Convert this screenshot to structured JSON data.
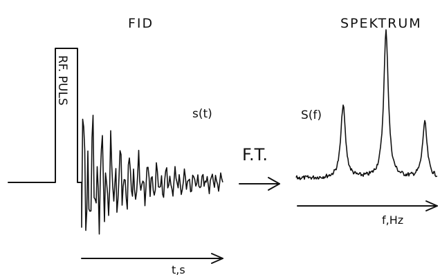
{
  "titles": {
    "left": "FID",
    "right": "SPEKTRUM"
  },
  "pulse_label": "RF. PULS",
  "fid_label": "s(t)",
  "spectrum_label": "S(f)",
  "transform_label": "F.T.",
  "time_axis_label": "t,s",
  "freq_axis_label": "f,Hz"
}
